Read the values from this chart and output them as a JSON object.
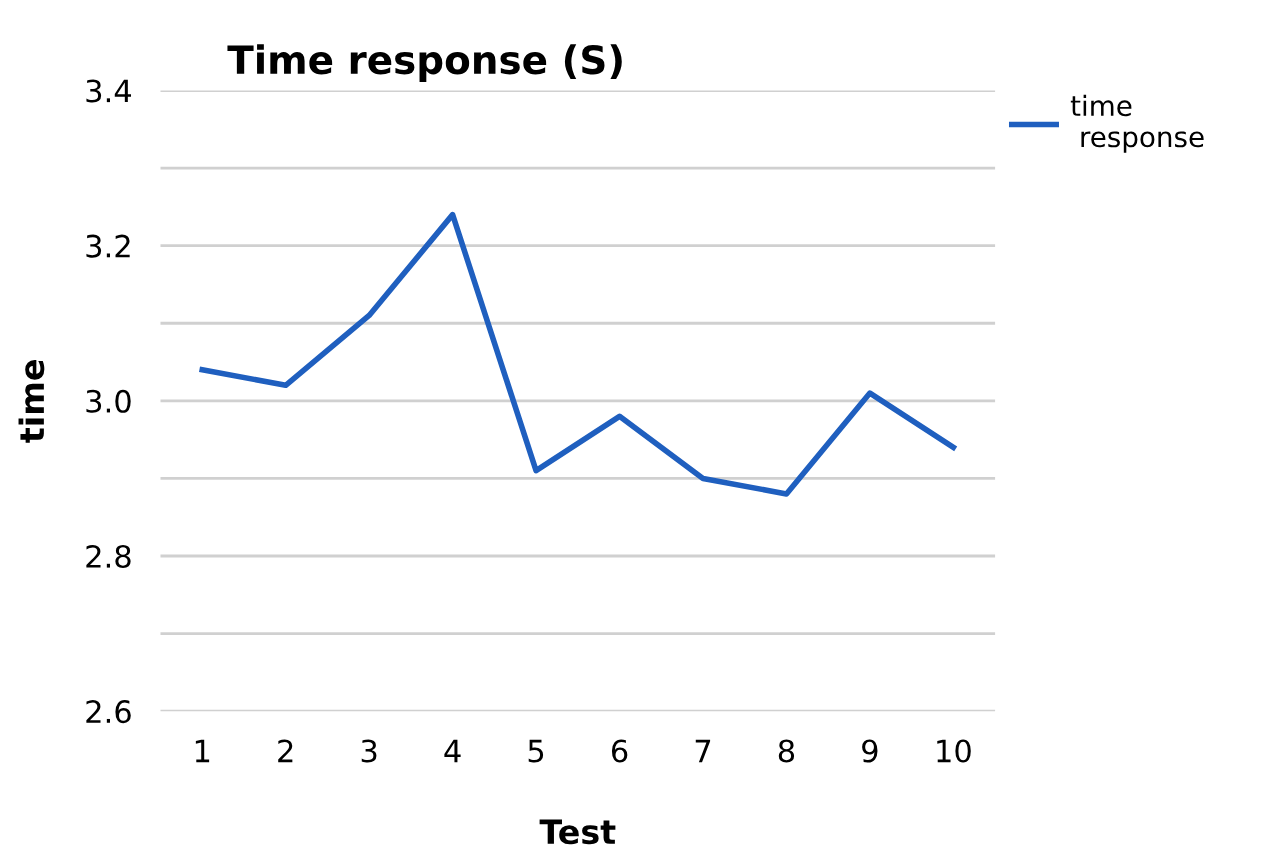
{
  "chart_data": {
    "type": "line",
    "title": "Time response (S)",
    "xlabel": "Test",
    "ylabel": "time",
    "categories": [
      "1",
      "2",
      "3",
      "4",
      "5",
      "6",
      "7",
      "8",
      "9",
      "10"
    ],
    "series": [
      {
        "name": "time\n response",
        "color": "#1f5fbf",
        "values": [
          3.04,
          3.02,
          3.11,
          3.24,
          2.91,
          2.98,
          2.9,
          2.88,
          3.01,
          2.94
        ]
      }
    ],
    "ylim": [
      2.6,
      3.4
    ],
    "yticks": [
      2.6,
      {
        "value": 2.7,
        "label": null
      },
      2.8,
      {
        "value": 2.9,
        "label": null
      },
      "3.0",
      {
        "value": 3.1,
        "label": null
      },
      3.2,
      {
        "value": 3.3,
        "label": null
      },
      3.4
    ],
    "grid": "y",
    "legend": "top right",
    "marker": "none",
    "line_style": "solid"
  }
}
